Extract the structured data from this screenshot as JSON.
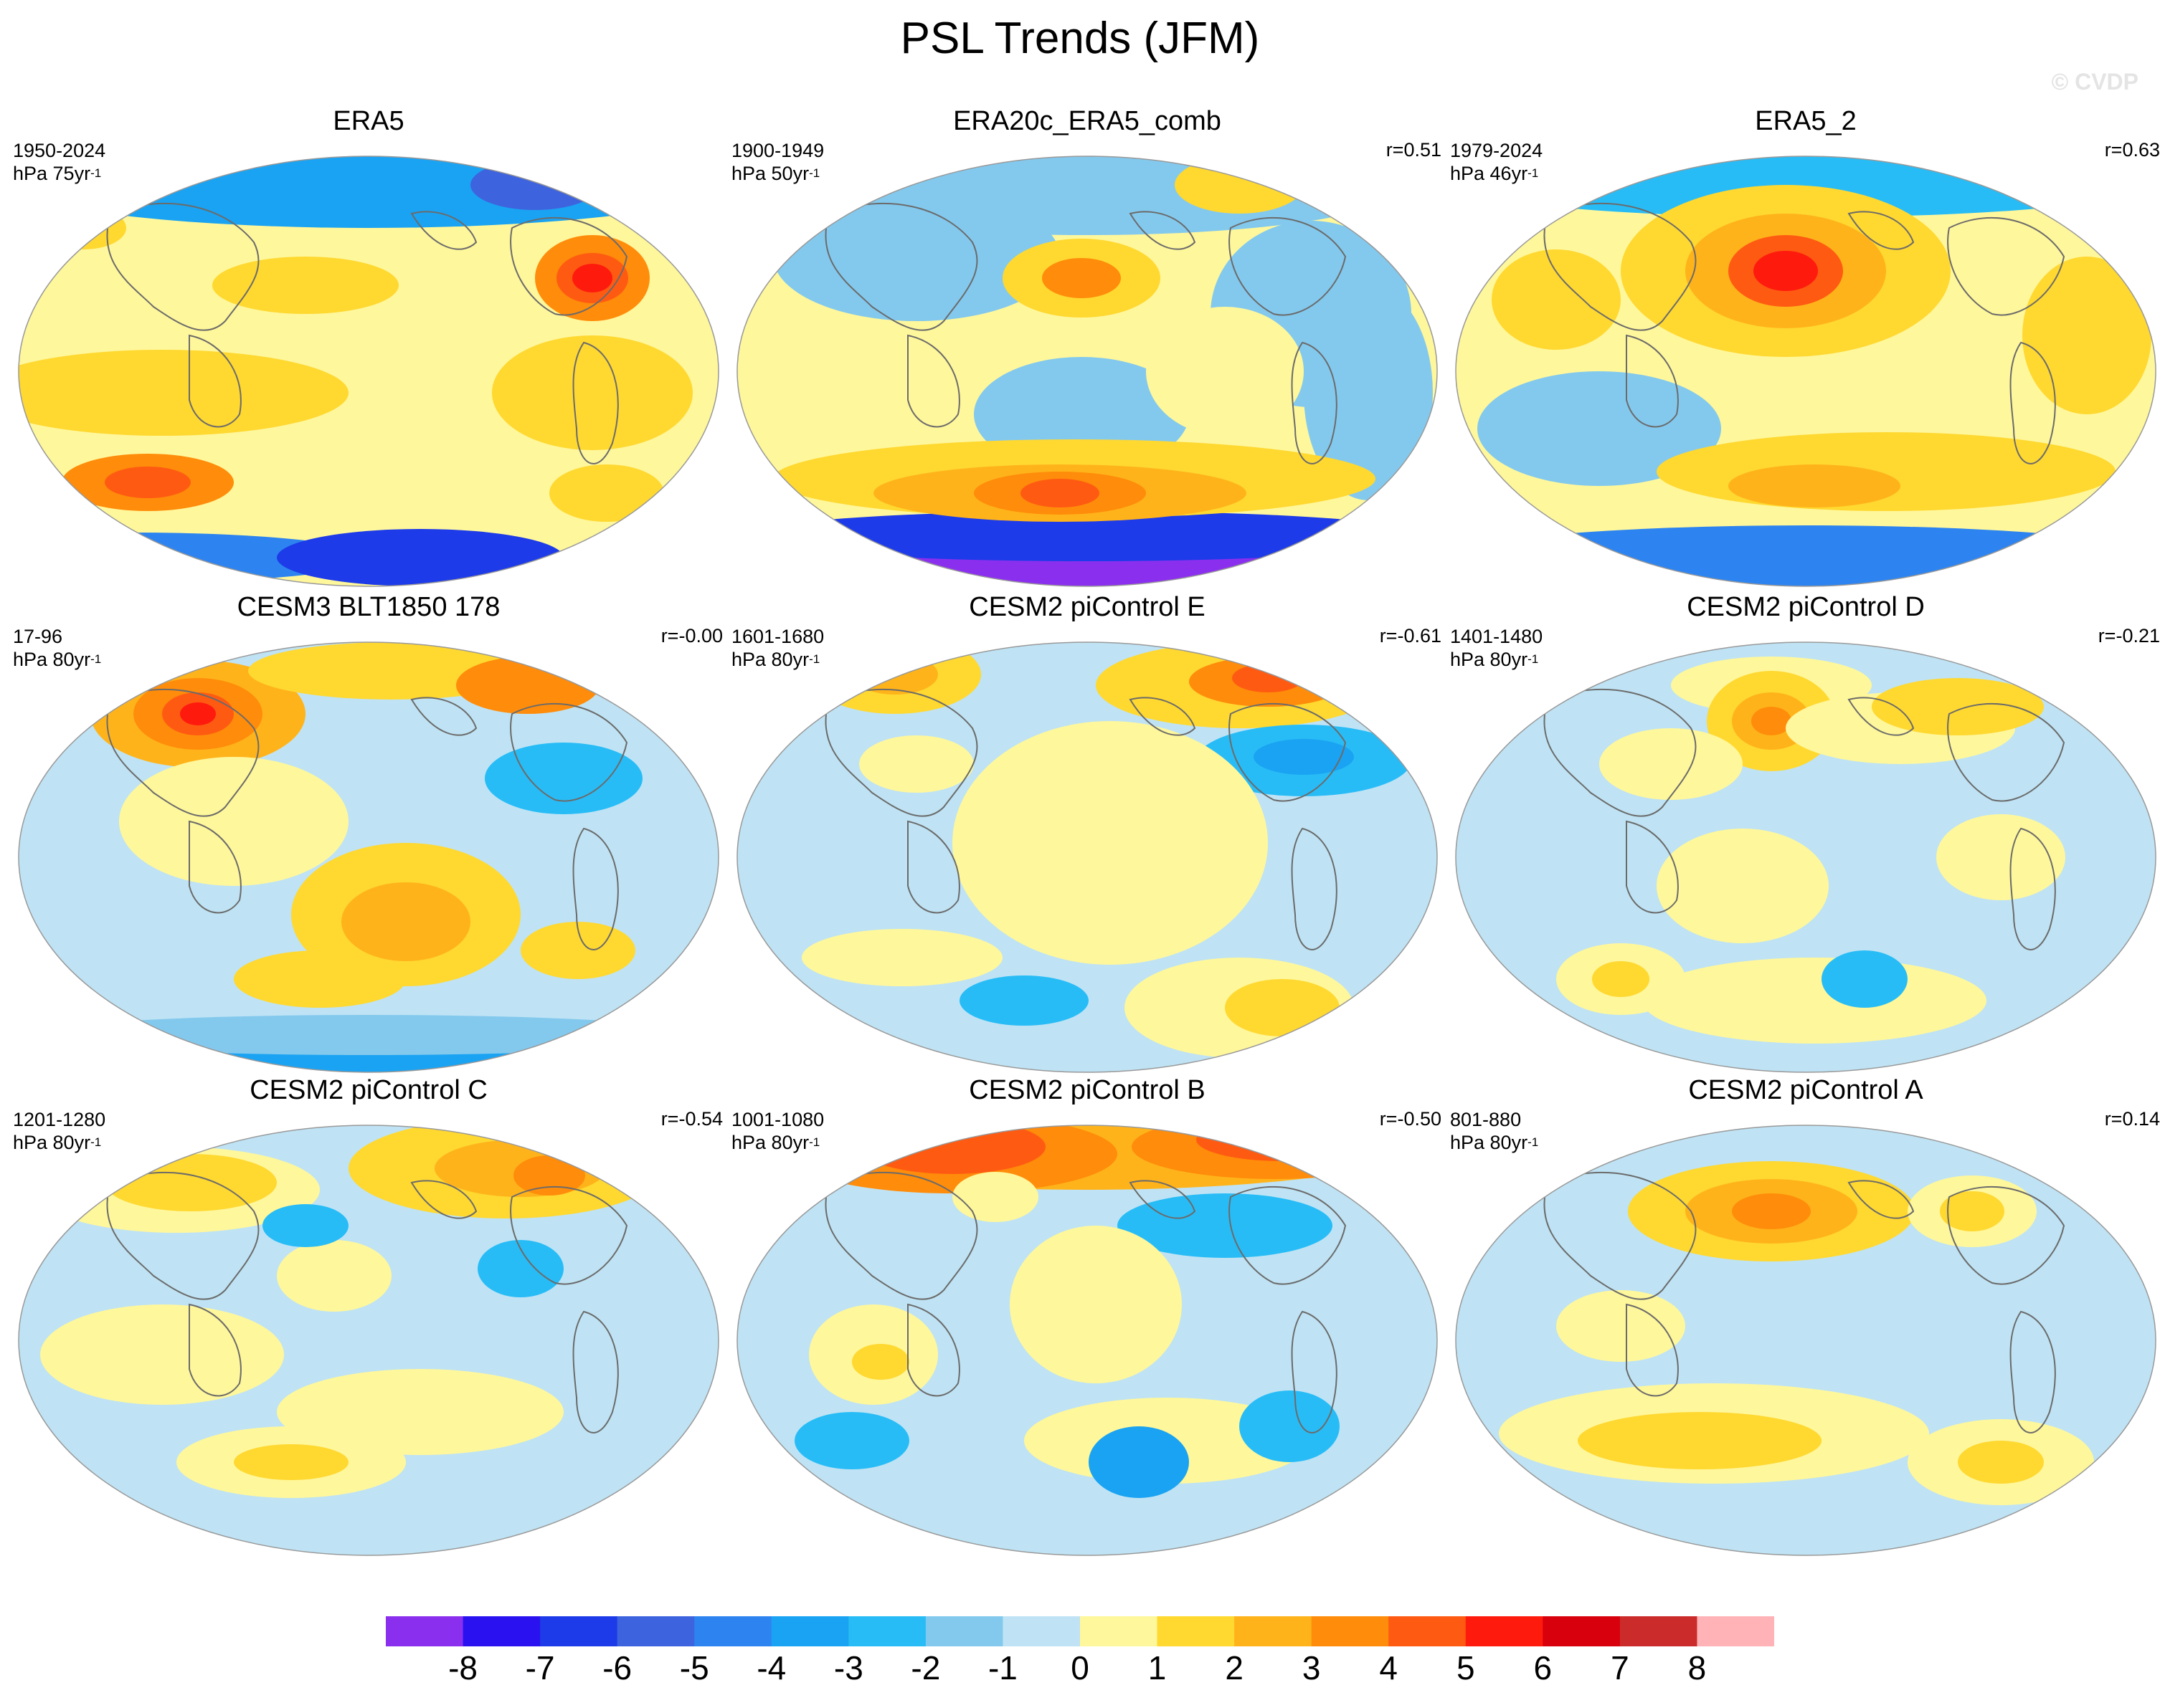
{
  "figure": {
    "title": "PSL Trends (JFM)",
    "watermark": "© CVDP"
  },
  "colorbar": {
    "labels": [
      "-8",
      "-7",
      "-6",
      "-5",
      "-4",
      "-3",
      "-2",
      "-1",
      "0",
      "1",
      "2",
      "3",
      "4",
      "5",
      "6",
      "7",
      "8"
    ],
    "colors": [
      "#8b2fef",
      "#2a12f0",
      "#1d3be8",
      "#3e63de",
      "#2d84f0",
      "#1aa3f2",
      "#28bcf6",
      "#83c9ee",
      "#bfe3f4",
      "#fff79b",
      "#ffd830",
      "#ffb31a",
      "#ff8c0a",
      "#ff5a12",
      "#ff1a0e",
      "#d7000c",
      "#cc2b2b",
      "#ffb3b6"
    ]
  },
  "panels": [
    {
      "title": "ERA5",
      "period": "1950-2024",
      "units_base": "hPa 75yr",
      "units_exp": "-1",
      "corr": ""
    },
    {
      "title": "ERA20c_ERA5_comb",
      "period": "1900-1949",
      "units_base": "hPa 50yr",
      "units_exp": "-1",
      "corr": "r=0.51"
    },
    {
      "title": "ERA5_2",
      "period": "1979-2024",
      "units_base": "hPa 46yr",
      "units_exp": "-1",
      "corr": "r=0.63"
    },
    {
      "title": "CESM3 BLT1850 178",
      "period": "17-96",
      "units_base": "hPa 80yr",
      "units_exp": "-1",
      "corr": "r=-0.00"
    },
    {
      "title": "CESM2 piControl E",
      "period": "1601-1680",
      "units_base": "hPa 80yr",
      "units_exp": "-1",
      "corr": "r=-0.61"
    },
    {
      "title": "CESM2 piControl D",
      "period": "1401-1480",
      "units_base": "hPa 80yr",
      "units_exp": "-1",
      "corr": "r=-0.21"
    },
    {
      "title": "CESM2 piControl C",
      "period": "1201-1280",
      "units_base": "hPa 80yr",
      "units_exp": "-1",
      "corr": "r=-0.54"
    },
    {
      "title": "CESM2 piControl B",
      "period": "1001-1080",
      "units_base": "hPa 80yr",
      "units_exp": "-1",
      "corr": "r=-0.50"
    },
    {
      "title": "CESM2 piControl A",
      "period": "801-880",
      "units_base": "hPa 80yr",
      "units_exp": "-1",
      "corr": "r=0.14"
    }
  ]
}
